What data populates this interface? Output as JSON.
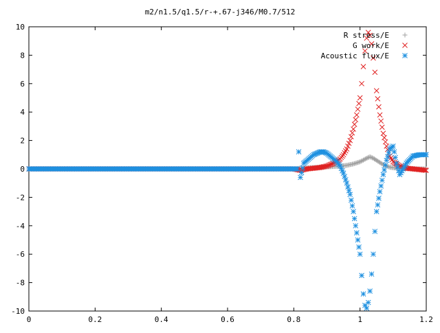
{
  "chart_data": {
    "type": "scatter",
    "title": "m2/n1.5/q1.5/r-+.67-j346/M0.7/512",
    "xlabel": "",
    "ylabel": "",
    "xlim": [
      0,
      1.2
    ],
    "ylim": [
      -10,
      10
    ],
    "xticks": [
      0,
      0.2,
      0.4,
      0.6,
      0.8,
      1,
      1.2
    ],
    "xtick_labels": [
      "0",
      "0.2",
      "0.4",
      "0.6",
      "0.8",
      "1",
      "1.2"
    ],
    "yticks": [
      -10,
      -8,
      -6,
      -4,
      -2,
      0,
      2,
      4,
      6,
      8,
      10
    ],
    "ytick_labels": [
      "-10",
      "-8",
      "-6",
      "-4",
      "-2",
      "0",
      "2",
      "4",
      "6",
      "8",
      "10"
    ],
    "grid": false,
    "legend_position": "top-right",
    "series": [
      {
        "name": "R stress/E",
        "color": "#a0a0a0",
        "marker": "plus",
        "x": [
          0.0,
          0.1,
          0.2,
          0.3,
          0.4,
          0.5,
          0.6,
          0.7,
          0.8,
          0.82,
          0.84,
          0.86,
          0.88,
          0.9,
          0.92,
          0.94,
          0.96,
          0.98,
          1.0,
          1.01,
          1.02,
          1.03,
          1.04,
          1.05,
          1.06,
          1.07,
          1.08,
          1.09,
          1.1,
          1.12,
          1.14,
          1.16,
          1.18,
          1.2
        ],
        "y": [
          0.0,
          0.0,
          0.0,
          0.0,
          0.0,
          0.0,
          0.0,
          0.0,
          0.0,
          0.05,
          0.08,
          0.1,
          0.12,
          0.14,
          0.17,
          0.2,
          0.25,
          0.35,
          0.5,
          0.62,
          0.75,
          0.85,
          0.75,
          0.6,
          0.45,
          0.3,
          0.2,
          0.12,
          0.08,
          0.04,
          0.02,
          0.01,
          0.0,
          0.0
        ]
      },
      {
        "name": "G work/E",
        "color": "#e02020",
        "marker": "cross",
        "x": [
          0.0,
          0.1,
          0.2,
          0.3,
          0.4,
          0.5,
          0.6,
          0.7,
          0.8,
          0.82,
          0.84,
          0.86,
          0.88,
          0.9,
          0.92,
          0.94,
          0.95,
          0.96,
          0.97,
          0.98,
          0.99,
          1.0,
          1.005,
          1.01,
          1.015,
          1.02,
          1.025,
          1.03,
          1.035,
          1.04,
          1.045,
          1.05,
          1.06,
          1.07,
          1.08,
          1.09,
          1.1,
          1.12,
          1.14,
          1.16,
          1.18,
          1.2
        ],
        "y": [
          0.0,
          0.0,
          0.0,
          0.0,
          0.0,
          0.0,
          0.0,
          0.0,
          0.0,
          -0.1,
          0.0,
          0.05,
          0.1,
          0.2,
          0.4,
          0.7,
          1.0,
          1.4,
          2.0,
          2.8,
          3.8,
          5.0,
          6.0,
          7.2,
          8.3,
          9.2,
          9.6,
          9.4,
          8.8,
          7.8,
          6.8,
          5.5,
          3.8,
          2.5,
          1.6,
          0.9,
          0.5,
          0.2,
          0.05,
          0.0,
          -0.05,
          -0.1
        ]
      },
      {
        "name": "Acoustic flux/E",
        "color": "#1e90e0",
        "marker": "star",
        "x": [
          0.0,
          0.1,
          0.2,
          0.3,
          0.4,
          0.5,
          0.6,
          0.7,
          0.8,
          0.81,
          0.815,
          0.82,
          0.83,
          0.84,
          0.85,
          0.86,
          0.87,
          0.88,
          0.89,
          0.9,
          0.91,
          0.92,
          0.93,
          0.94,
          0.95,
          0.96,
          0.97,
          0.98,
          0.99,
          1.0,
          1.005,
          1.01,
          1.015,
          1.02,
          1.025,
          1.03,
          1.035,
          1.04,
          1.045,
          1.05,
          1.06,
          1.07,
          1.08,
          1.09,
          1.1,
          1.11,
          1.12,
          1.14,
          1.16,
          1.18,
          1.2
        ],
        "y": [
          0.0,
          0.0,
          0.0,
          0.0,
          0.0,
          0.0,
          0.0,
          0.0,
          0.0,
          0.0,
          1.2,
          -0.6,
          0.4,
          0.6,
          0.8,
          1.0,
          1.1,
          1.2,
          1.2,
          1.1,
          0.9,
          0.7,
          0.5,
          0.2,
          -0.3,
          -1.0,
          -1.8,
          -3.0,
          -4.5,
          -6.0,
          -7.5,
          -8.8,
          -9.6,
          -9.8,
          -9.4,
          -8.6,
          -7.4,
          -6.0,
          -4.4,
          -3.0,
          -1.6,
          -0.4,
          0.6,
          1.4,
          1.6,
          0.4,
          -0.4,
          0.4,
          0.9,
          1.0,
          1.0
        ]
      }
    ]
  }
}
